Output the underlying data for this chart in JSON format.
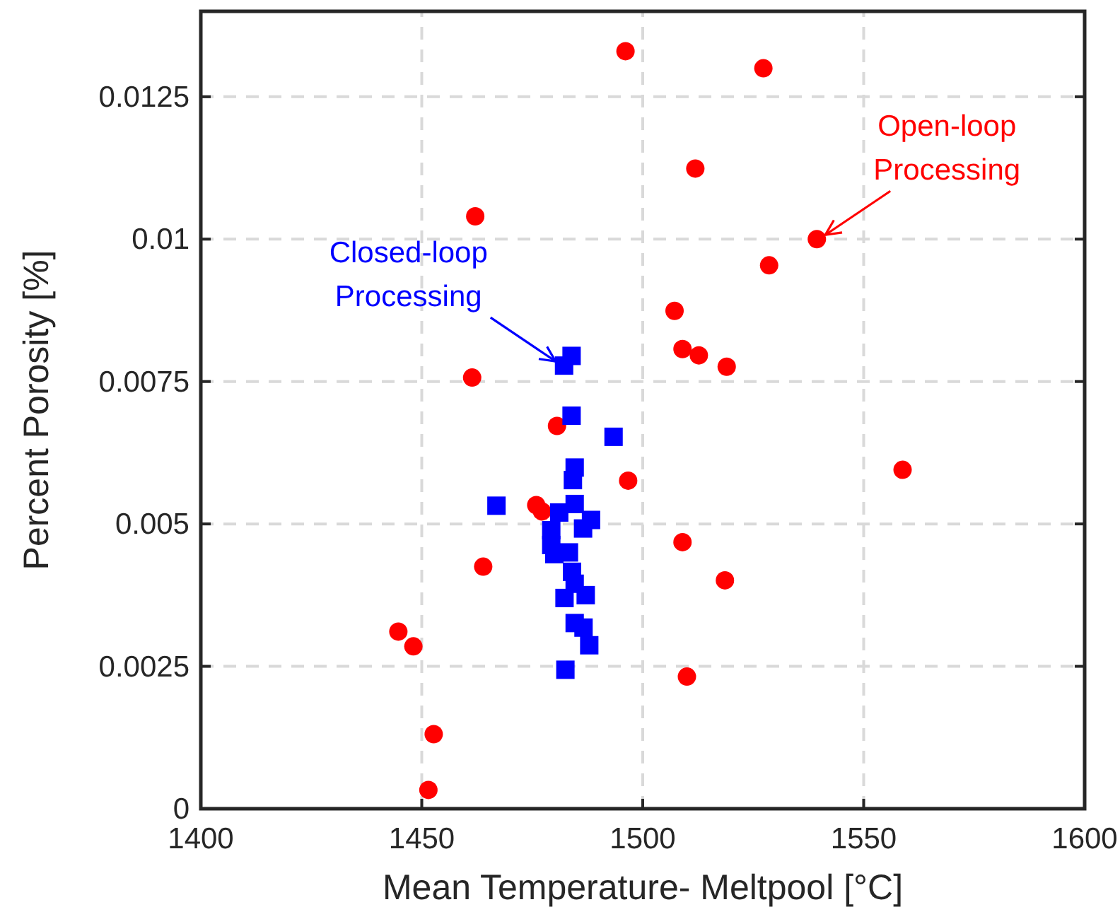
{
  "chart_data": {
    "type": "scatter",
    "xlabel": "Mean Temperature- Meltpool [°C]",
    "ylabel": "Percent Porosity [%]",
    "xlim": [
      1400,
      1600
    ],
    "xticks": [
      1400,
      1450,
      1500,
      1550,
      1600
    ],
    "ylim": [
      0,
      0.014
    ],
    "yticks": [
      0,
      0.0025,
      0.005,
      0.0075,
      0.01,
      0.0125
    ],
    "grid": true,
    "series": [
      {
        "color": "#ff0000",
        "marker": "circle",
        "x": [
          1496.1,
          1527.3,
          1511.9,
          1462.1,
          1539.4,
          1528.6,
          1507.2,
          1509.0,
          1512.7,
          1519.0,
          1461.4,
          1480.6,
          1558.8,
          1496.7,
          1475.9,
          1477.2,
          1509.0,
          1463.9,
          1518.6,
          1444.7,
          1448.1,
          1510.0,
          1452.7,
          1451.5
        ],
        "values": [
          0.0133,
          0.013,
          0.01124,
          0.0104,
          0.01,
          0.00954,
          0.00874,
          0.00807,
          0.00796,
          0.00776,
          0.00757,
          0.00672,
          0.00595,
          0.00576,
          0.00533,
          0.00522,
          0.00468,
          0.00425,
          0.00401,
          0.00311,
          0.00285,
          0.00232,
          0.00131,
          0.00033
        ]
      },
      {
        "color": "#0000ff",
        "marker": "square",
        "x": [
          1483.9,
          1482.2,
          1483.9,
          1493.4,
          1466.9,
          1484.6,
          1484.2,
          1484.6,
          1481.1,
          1488.3,
          1486.5,
          1479.3,
          1479.3,
          1480.0,
          1483.3,
          1484.0,
          1484.6,
          1482.3,
          1487.1,
          1484.6,
          1486.6,
          1487.9,
          1482.5
        ],
        "values": [
          0.00795,
          0.00778,
          0.0069,
          0.00653,
          0.00532,
          0.00599,
          0.00577,
          0.00535,
          0.0052,
          0.00507,
          0.00492,
          0.00489,
          0.00463,
          0.00447,
          0.0045,
          0.00416,
          0.00395,
          0.0037,
          0.00375,
          0.00326,
          0.00318,
          0.00287,
          0.00244
        ]
      }
    ],
    "annotations": [
      {
        "text": "Open-loop\nProcessing",
        "x": 1539.4,
        "y": 0.01
      },
      {
        "text": "Closed-loop\nProcessing",
        "x": 1482.2,
        "y": 0.00778
      }
    ]
  }
}
